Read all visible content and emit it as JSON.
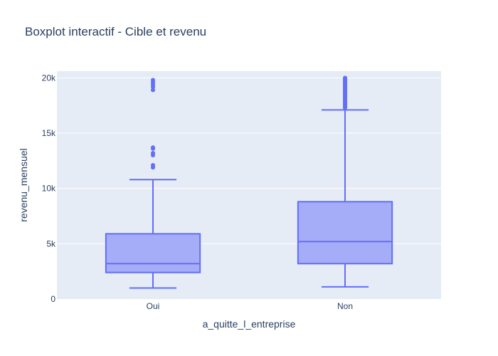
{
  "chart_data": {
    "type": "box",
    "title": "Boxplot interactif - Cible et revenu",
    "xlabel": "a_quitte_l_entreprise",
    "ylabel": "revenu_mensuel",
    "ylim": [
      0,
      20600
    ],
    "yticks": [
      {
        "value": 0,
        "label": "0"
      },
      {
        "value": 5000,
        "label": "5k"
      },
      {
        "value": 10000,
        "label": "10k"
      },
      {
        "value": 15000,
        "label": "15k"
      },
      {
        "value": 20000,
        "label": "20k"
      }
    ],
    "grid": true,
    "colors": {
      "box_line": "#636efa",
      "box_fill": "#a5acf8",
      "plot_bg": "#e5ecf6",
      "grid": "#ffffff",
      "text": "#2a3f5f"
    },
    "categories": [
      "Oui",
      "Non"
    ],
    "boxes": [
      {
        "category": "Oui",
        "min": 1000,
        "q1": 2400,
        "median": 3200,
        "q3": 5900,
        "max": 10800,
        "outliers": [
          11900,
          12100,
          13000,
          13200,
          13600,
          13700,
          18900,
          19200,
          19400,
          19600,
          19800
        ]
      },
      {
        "category": "Non",
        "min": 1100,
        "q1": 3200,
        "median": 5200,
        "q3": 8800,
        "max": 17100,
        "outliers": [
          17300,
          17400,
          17500,
          17600,
          17700,
          17800,
          17900,
          18000,
          18100,
          18200,
          18300,
          18400,
          18500,
          18600,
          18700,
          18800,
          18900,
          19000,
          19100,
          19200,
          19300,
          19400,
          19500,
          19600,
          19700,
          19800,
          19900,
          20000
        ]
      }
    ]
  }
}
